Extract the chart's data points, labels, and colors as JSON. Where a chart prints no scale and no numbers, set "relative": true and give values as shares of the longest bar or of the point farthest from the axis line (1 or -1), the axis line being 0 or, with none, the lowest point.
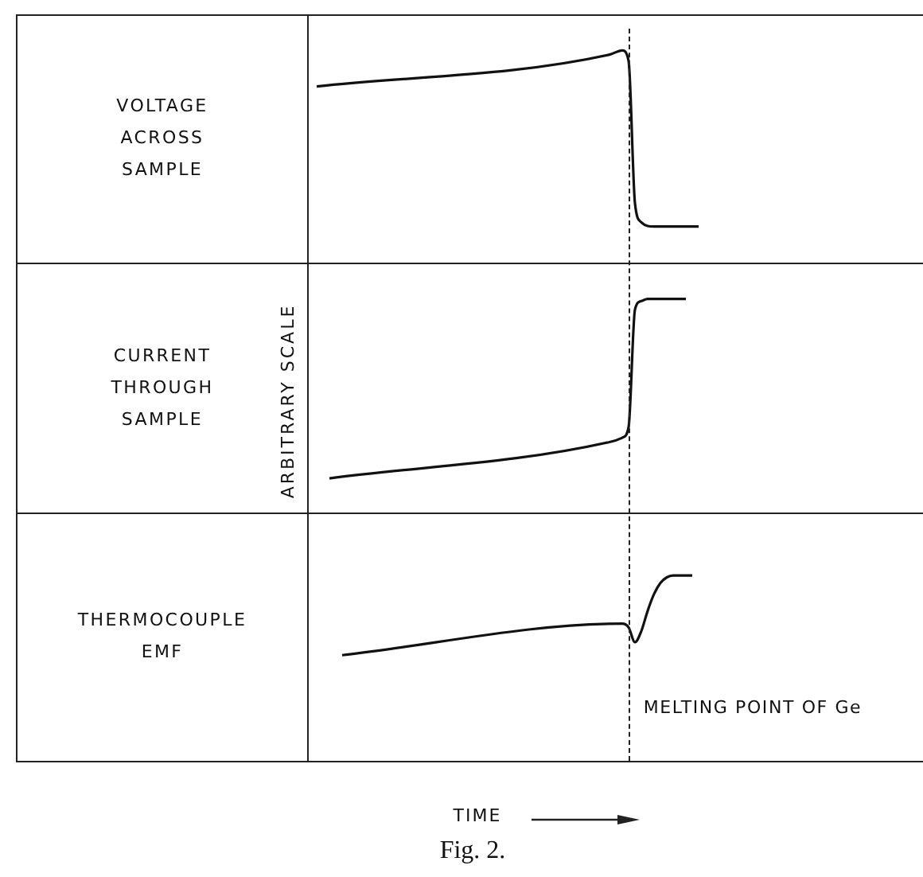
{
  "chart_data": [
    {
      "type": "line",
      "title": "VOLTAGE ACROSS SAMPLE",
      "relative": true,
      "color": "#111111",
      "categories": [
        null,
        null,
        null,
        null,
        null,
        null,
        null,
        null,
        null,
        null,
        null,
        null,
        null,
        null,
        null,
        null,
        null,
        null,
        null,
        null,
        null,
        null,
        null,
        null,
        null,
        null,
        null,
        null,
        null,
        null,
        null,
        null,
        null,
        null,
        null,
        null,
        null,
        null,
        null,
        null,
        null,
        null,
        null,
        null,
        null,
        null,
        null,
        null,
        null,
        null,
        null,
        null,
        null,
        null,
        null,
        null,
        null,
        null,
        null,
        null,
        null,
        null,
        null,
        null,
        null,
        null,
        null,
        null,
        null,
        null,
        null,
        null,
        null,
        null,
        null,
        null,
        null,
        null,
        null,
        null,
        null,
        null,
        null,
        null,
        null,
        null,
        null,
        null,
        null,
        null,
        null,
        null,
        null,
        null,
        null,
        null,
        null
      ],
      "values": [
        null,
        0.83,
        null,
        null,
        null,
        null,
        null,
        null,
        null,
        null,
        null,
        null,
        null,
        null,
        null,
        null,
        null,
        null,
        null,
        null,
        null,
        null,
        null,
        null,
        null,
        null,
        null,
        null,
        null,
        null,
        null,
        null,
        null,
        null,
        null,
        null,
        null,
        null,
        null,
        null,
        null,
        null,
        null,
        null,
        null,
        null,
        null,
        0.98,
        null,
        1,
        0.95,
        0.28,
        0.19,
        null,
        0.17,
        null,
        null,
        null,
        null,
        null,
        null,
        0.17,
        null,
        null,
        null,
        null,
        null,
        null,
        null,
        null,
        null,
        null,
        null,
        null,
        null,
        null,
        null,
        null,
        null,
        null,
        null,
        null,
        null,
        null,
        null,
        null,
        null,
        null,
        null,
        null,
        null,
        null,
        null,
        null,
        null,
        null,
        null
      ]
    },
    {
      "type": "line",
      "title": "CURRENT THROUGH SAMPLE",
      "ylabel": "ARBITRARY SCALE",
      "relative": true,
      "color": "#111111",
      "categories": [
        null,
        null,
        null,
        null,
        null,
        null,
        null,
        null,
        null,
        null,
        null,
        null,
        null,
        null,
        null,
        null,
        null,
        null,
        null,
        null,
        null,
        null,
        null,
        null,
        null,
        null,
        null,
        null,
        null,
        null,
        null,
        null,
        null,
        null,
        null,
        null,
        null,
        null,
        null,
        null,
        null,
        null,
        null,
        null,
        null,
        null,
        null,
        null,
        null,
        null,
        null,
        null,
        null,
        null,
        null,
        null,
        null,
        null,
        null,
        null,
        null,
        null,
        null,
        null,
        null,
        null,
        null,
        null,
        null,
        null,
        null,
        null,
        null,
        null,
        null,
        null,
        null,
        null,
        null,
        null,
        null,
        null,
        null,
        null,
        null,
        null,
        null,
        null,
        null,
        null,
        null,
        null,
        null,
        null,
        null,
        null,
        null
      ],
      "values": [
        null,
        null,
        null,
        0.16,
        null,
        null,
        null,
        null,
        null,
        null,
        null,
        null,
        null,
        null,
        null,
        null,
        null,
        null,
        null,
        null,
        null,
        null,
        null,
        null,
        null,
        null,
        null,
        null,
        null,
        null,
        null,
        null,
        null,
        null,
        null,
        null,
        null,
        null,
        null,
        null,
        null,
        null,
        null,
        null,
        null,
        null,
        null,
        0.33,
        null,
        0.35,
        0.4,
        0.95,
        0.99,
        1,
        null,
        null,
        null,
        null,
        null,
        1,
        null,
        null,
        null,
        null,
        null,
        null,
        null,
        null,
        null,
        null,
        null,
        null,
        null,
        null,
        null,
        null,
        null,
        null,
        null,
        null,
        null,
        null,
        null,
        null,
        null,
        null,
        null,
        null,
        null,
        null,
        null,
        null,
        null,
        null,
        null,
        null,
        null
      ]
    },
    {
      "type": "line",
      "title": "THERMOCOUPLE EMF",
      "xlabel": "TIME",
      "relative": true,
      "color": "#111111",
      "categories": [
        null,
        null,
        null,
        null,
        null,
        null,
        null,
        null,
        null,
        null,
        null,
        null,
        null,
        null,
        null,
        null,
        null,
        null,
        null,
        null,
        null,
        null,
        null,
        null,
        null,
        null,
        null,
        null,
        null,
        null,
        null,
        null,
        null,
        null,
        null,
        null,
        null,
        null,
        null,
        null,
        null,
        null,
        null,
        null,
        null,
        null,
        null,
        null,
        null,
        null,
        null,
        null,
        null,
        null,
        null,
        null,
        null,
        null,
        null,
        null,
        null,
        null,
        null,
        null,
        null,
        null,
        null,
        null,
        null,
        null,
        null,
        null,
        null,
        null,
        null,
        null,
        null,
        null,
        null,
        null,
        null,
        null,
        null,
        null,
        null,
        null,
        null,
        null,
        null,
        null,
        null,
        null,
        null,
        null,
        null,
        null,
        null
      ],
      "values": [
        null,
        null,
        null,
        null,
        null,
        0.57,
        null,
        null,
        null,
        null,
        null,
        null,
        null,
        null,
        null,
        null,
        null,
        null,
        null,
        null,
        null,
        null,
        null,
        null,
        null,
        null,
        null,
        null,
        null,
        null,
        null,
        null,
        null,
        null,
        null,
        null,
        null,
        null,
        null,
        null,
        null,
        null,
        null,
        null,
        null,
        null,
        null,
        null,
        null,
        0.74,
        0.72,
        0.64,
        0.7,
        0.81,
        0.9,
        0.96,
        0.99,
        1,
        null,
        null,
        1,
        null,
        null,
        null,
        null,
        null,
        null,
        null,
        null,
        null,
        null,
        null,
        null,
        null,
        null,
        null,
        null,
        null,
        null,
        null,
        null,
        null,
        null,
        null,
        null,
        null,
        null,
        null,
        null,
        null,
        null,
        null,
        null,
        null,
        null,
        null,
        null
      ],
      "annotations": [
        "MELTING POINT OF Ge",
        "Fig. 2."
      ]
    }
  ]
}
